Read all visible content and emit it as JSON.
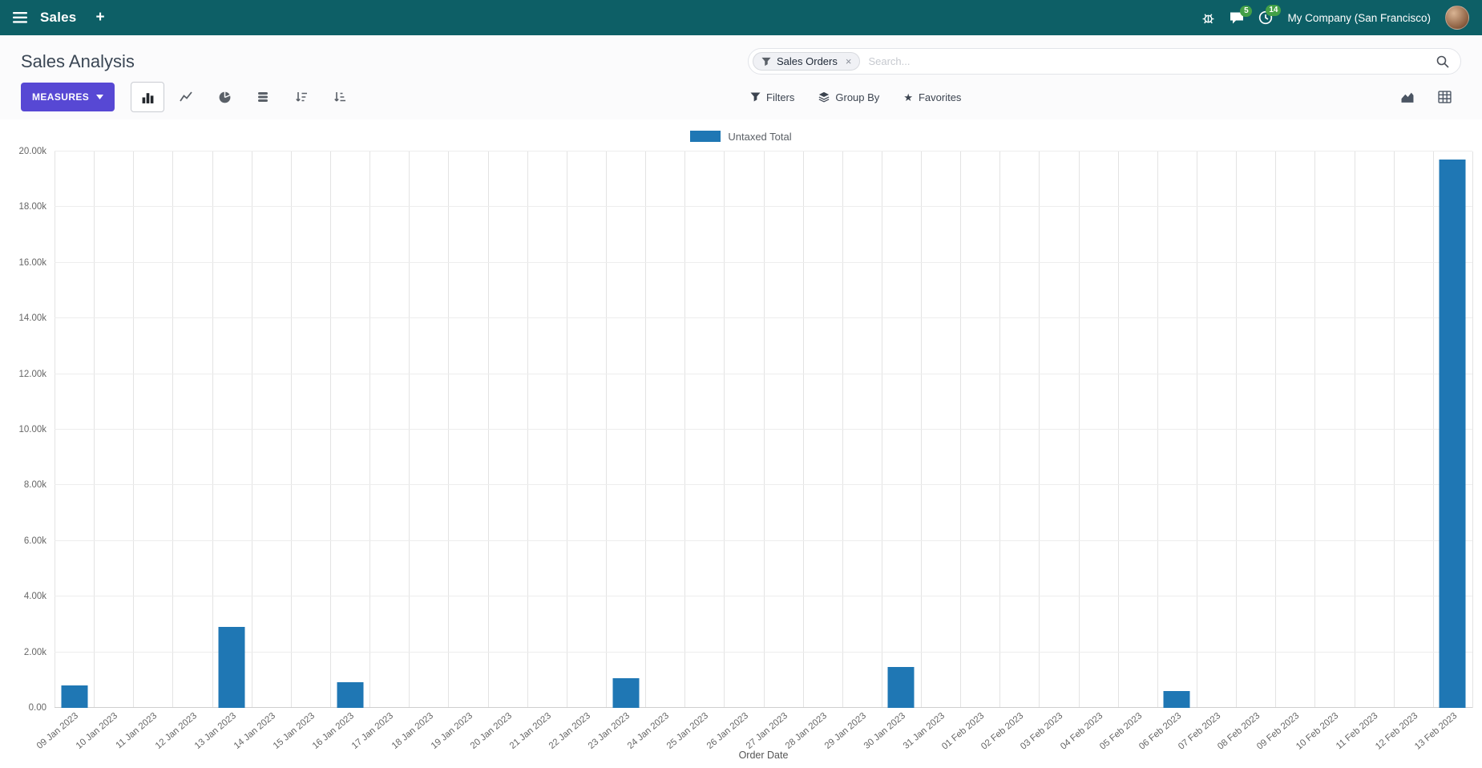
{
  "topbar": {
    "app_name": "Sales",
    "plus": "+",
    "messages_badge": "5",
    "activities_badge": "14",
    "company": "My Company (San Francisco)"
  },
  "control_panel": {
    "title": "Sales Analysis",
    "search": {
      "facet_label": "Sales Orders",
      "facet_remove": "×",
      "placeholder": "Search..."
    },
    "measures_button": "MEASURES",
    "filters_button": "Filters",
    "group_by_button": "Group By",
    "favorites_button": "Favorites"
  },
  "icons": {
    "star": "★"
  },
  "chart_data": {
    "type": "bar",
    "title": "",
    "legend_position": "top",
    "grid": true,
    "xlabel": "Order Date",
    "ylabel": "",
    "ylim": [
      0,
      20000
    ],
    "y_ticks": [
      {
        "value": 0,
        "label": "0.00"
      },
      {
        "value": 2000,
        "label": "2.00k"
      },
      {
        "value": 4000,
        "label": "4.00k"
      },
      {
        "value": 6000,
        "label": "6.00k"
      },
      {
        "value": 8000,
        "label": "8.00k"
      },
      {
        "value": 10000,
        "label": "10.00k"
      },
      {
        "value": 12000,
        "label": "12.00k"
      },
      {
        "value": 14000,
        "label": "14.00k"
      },
      {
        "value": 16000,
        "label": "16.00k"
      },
      {
        "value": 18000,
        "label": "18.00k"
      },
      {
        "value": 20000,
        "label": "20.00k"
      }
    ],
    "categories": [
      "09 Jan 2023",
      "10 Jan 2023",
      "11 Jan 2023",
      "12 Jan 2023",
      "13 Jan 2023",
      "14 Jan 2023",
      "15 Jan 2023",
      "16 Jan 2023",
      "17 Jan 2023",
      "18 Jan 2023",
      "19 Jan 2023",
      "20 Jan 2023",
      "21 Jan 2023",
      "22 Jan 2023",
      "23 Jan 2023",
      "24 Jan 2023",
      "25 Jan 2023",
      "26 Jan 2023",
      "27 Jan 2023",
      "28 Jan 2023",
      "29 Jan 2023",
      "30 Jan 2023",
      "31 Jan 2023",
      "01 Feb 2023",
      "02 Feb 2023",
      "03 Feb 2023",
      "04 Feb 2023",
      "05 Feb 2023",
      "06 Feb 2023",
      "07 Feb 2023",
      "08 Feb 2023",
      "09 Feb 2023",
      "10 Feb 2023",
      "11 Feb 2023",
      "12 Feb 2023",
      "13 Feb 2023"
    ],
    "series": [
      {
        "name": "Untaxed Total",
        "color": "#1f77b4",
        "values": [
          800,
          0,
          0,
          0,
          2900,
          0,
          0,
          930,
          0,
          0,
          0,
          0,
          0,
          0,
          1080,
          0,
          0,
          0,
          0,
          0,
          0,
          1480,
          0,
          0,
          0,
          0,
          0,
          0,
          620,
          0,
          0,
          0,
          0,
          0,
          0,
          19700
        ]
      }
    ]
  }
}
